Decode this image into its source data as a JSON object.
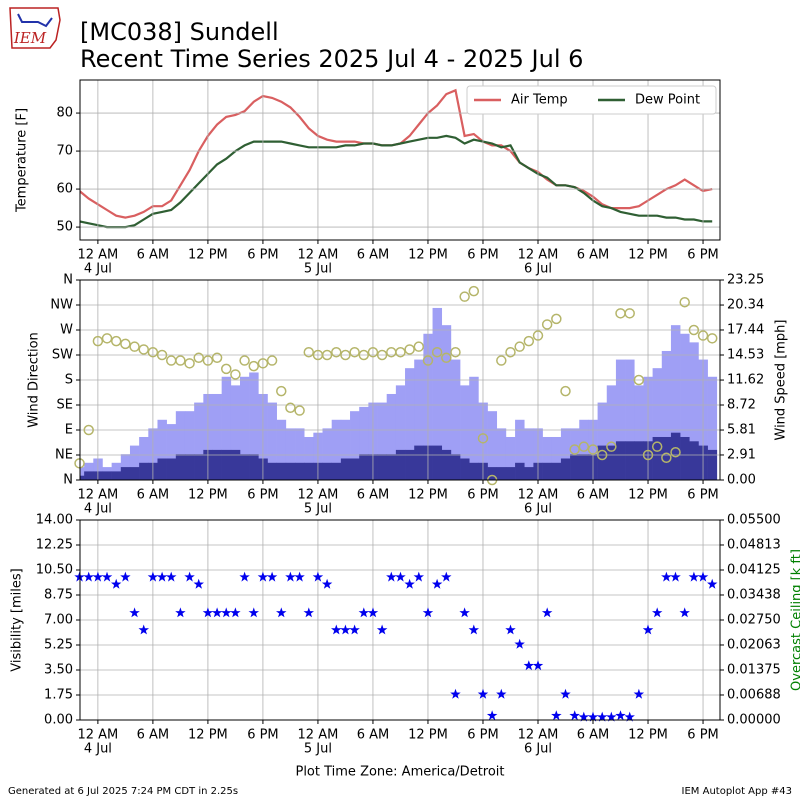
{
  "header": {
    "logo": "IEM",
    "title_line1": "[MC038] Sundell",
    "title_line2": "Recent Time Series 2025 Jul 4 - 2025 Jul 6"
  },
  "footer": {
    "timezone": "Plot Time Zone: America/Detroit",
    "generated": "Generated at 6 Jul 2025 7:24 PM CDT in 2.25s",
    "app": "IEM Autoplot App #43"
  },
  "chart_data": [
    {
      "type": "line",
      "ylabel": "Temperature [F]",
      "grid": true,
      "legend": "upper right",
      "xlim": [
        -1.95,
        67.85
      ],
      "xticks": [
        {
          "value": 0,
          "label": "12 AM"
        },
        {
          "value": 6,
          "label": "6 AM"
        },
        {
          "value": 12,
          "label": "12 PM"
        },
        {
          "value": 18,
          "label": "6 PM"
        },
        {
          "value": 24,
          "label": "12 AM"
        },
        {
          "value": 30,
          "label": "6 AM"
        },
        {
          "value": 36,
          "label": "12 PM"
        },
        {
          "value": 42,
          "label": "6 PM"
        },
        {
          "value": 48,
          "label": "12 AM"
        },
        {
          "value": 54,
          "label": "6 AM"
        },
        {
          "value": 60,
          "label": "12 PM"
        },
        {
          "value": 66,
          "label": "6 PM"
        }
      ],
      "xdates": [
        {
          "value": 0,
          "label": "4 Jul"
        },
        {
          "value": 24,
          "label": "5 Jul"
        },
        {
          "value": 48,
          "label": "6 Jul"
        }
      ],
      "ylim": [
        46.6,
        88.7
      ],
      "yticks": [
        50,
        60,
        70,
        80
      ],
      "x": [
        -2,
        -1,
        0,
        1,
        2,
        3,
        4,
        5,
        6,
        7,
        8,
        9,
        10,
        11,
        12,
        13,
        14,
        15,
        16,
        17,
        18,
        19,
        20,
        21,
        22,
        23,
        24,
        25,
        26,
        27,
        28,
        29,
        30,
        31,
        32,
        33,
        34,
        35,
        36,
        37,
        38,
        39,
        40,
        41,
        42,
        43,
        44,
        45,
        46,
        47,
        48,
        49,
        50,
        51,
        52,
        53,
        54,
        55,
        56,
        57,
        58,
        59,
        60,
        61,
        62,
        63,
        64,
        65,
        66,
        67
      ],
      "series": [
        {
          "name": "Air Temp",
          "color": "#d95f60",
          "values": [
            59.5,
            57.5,
            56,
            54.5,
            53,
            52.5,
            53,
            54,
            55.5,
            55.5,
            57,
            61,
            65,
            70,
            74,
            77,
            79,
            79.5,
            80.5,
            83,
            84.5,
            84,
            83,
            81.5,
            79,
            76,
            74,
            73,
            72.5,
            72.5,
            72.5,
            72,
            72,
            71.5,
            71.5,
            72,
            74,
            77,
            80,
            82,
            85,
            86,
            74,
            74.5,
            72.5,
            71.5,
            71.5,
            70,
            67,
            65.5,
            64.5,
            62.5,
            61,
            61,
            60.5,
            59.5,
            58,
            56,
            55,
            55,
            55,
            55.5,
            57,
            58.5,
            60,
            61,
            62.5,
            61,
            59.5,
            60
          ]
        },
        {
          "name": "Dew Point",
          "color": "#2f5f33",
          "values": [
            51.5,
            51,
            50.5,
            50,
            50,
            50,
            50.5,
            52,
            53.5,
            54,
            54.5,
            56.5,
            59,
            61.5,
            64,
            66.5,
            68,
            70,
            71.5,
            72.5,
            72.5,
            72.5,
            72.5,
            72,
            71.5,
            71,
            71,
            71,
            71,
            71.5,
            71.5,
            72,
            72,
            71.5,
            71.5,
            72,
            72.5,
            73,
            73.5,
            73.5,
            74,
            73.5,
            72,
            73,
            72.5,
            72,
            71,
            71.5,
            67,
            65.5,
            64,
            63,
            61,
            61,
            60.5,
            59,
            57,
            55.5,
            55,
            54,
            53.5,
            53,
            53,
            53,
            52.5,
            52.5,
            52,
            52,
            51.5,
            51.5
          ]
        }
      ]
    },
    {
      "type": "bar",
      "ylabel": "Wind Direction",
      "y2label": "Wind Speed [mph]",
      "grid": true,
      "xlim": [
        -1.95,
        67.85
      ],
      "xticks": [
        {
          "value": 0,
          "label": "12 AM"
        },
        {
          "value": 6,
          "label": "6 AM"
        },
        {
          "value": 12,
          "label": "12 PM"
        },
        {
          "value": 18,
          "label": "6 PM"
        },
        {
          "value": 24,
          "label": "12 AM"
        },
        {
          "value": 30,
          "label": "6 AM"
        },
        {
          "value": 36,
          "label": "12 PM"
        },
        {
          "value": 42,
          "label": "6 PM"
        },
        {
          "value": 48,
          "label": "12 AM"
        },
        {
          "value": 54,
          "label": "6 AM"
        },
        {
          "value": 60,
          "label": "12 PM"
        },
        {
          "value": 66,
          "label": "6 PM"
        }
      ],
      "xdates": [
        {
          "value": 0,
          "label": "4 Jul"
        },
        {
          "value": 24,
          "label": "5 Jul"
        },
        {
          "value": 48,
          "label": "6 Jul"
        }
      ],
      "ylim": [
        0,
        360
      ],
      "yticks": [
        {
          "value": 0,
          "label": "N"
        },
        {
          "value": 45,
          "label": "NE"
        },
        {
          "value": 90,
          "label": "E"
        },
        {
          "value": 135,
          "label": "SE"
        },
        {
          "value": 180,
          "label": "S"
        },
        {
          "value": 225,
          "label": "SW"
        },
        {
          "value": 270,
          "label": "W"
        },
        {
          "value": 315,
          "label": "NW"
        },
        {
          "value": 360,
          "label": "N"
        }
      ],
      "y2lim": [
        0,
        23.25
      ],
      "y2ticks": [
        {
          "value": 0,
          "label": "0.00"
        },
        {
          "value": 2.91,
          "label": "2.91"
        },
        {
          "value": 5.81,
          "label": "5.81"
        },
        {
          "value": 8.72,
          "label": "8.72"
        },
        {
          "value": 11.62,
          "label": "11.62"
        },
        {
          "value": 14.53,
          "label": "14.53"
        },
        {
          "value": 17.44,
          "label": "17.44"
        },
        {
          "value": 20.34,
          "label": "20.34"
        },
        {
          "value": 23.25,
          "label": "23.25"
        }
      ],
      "x": [
        -2,
        -1,
        0,
        1,
        2,
        3,
        4,
        5,
        6,
        7,
        8,
        9,
        10,
        11,
        12,
        13,
        14,
        15,
        16,
        17,
        18,
        19,
        20,
        21,
        22,
        23,
        24,
        25,
        26,
        27,
        28,
        29,
        30,
        31,
        32,
        33,
        34,
        35,
        36,
        37,
        38,
        39,
        40,
        41,
        42,
        43,
        44,
        45,
        46,
        47,
        48,
        49,
        50,
        51,
        52,
        53,
        54,
        55,
        56,
        57,
        58,
        59,
        60,
        61,
        62,
        63,
        64,
        65,
        66,
        67
      ],
      "series": [
        {
          "kind": "bar",
          "axis": "y2",
          "color": "#9f9ff5",
          "values": [
            1.5,
            2,
            2.5,
            1.5,
            2,
            3,
            4,
            5,
            6,
            7,
            6.5,
            8,
            8,
            9,
            10,
            10,
            12,
            11,
            12,
            12.5,
            10,
            9,
            7,
            6,
            6,
            5,
            5.5,
            6,
            7,
            7,
            8,
            8.5,
            9,
            9,
            10,
            11,
            13,
            14,
            17,
            20,
            18,
            14,
            11,
            12,
            9,
            8,
            6,
            5,
            7,
            6,
            6,
            5,
            5,
            6,
            6,
            7,
            7,
            9,
            11,
            14,
            14,
            11,
            12,
            13,
            15,
            18,
            17,
            16,
            14,
            12
          ]
        },
        {
          "kind": "bar",
          "axis": "y2",
          "color": "#38389a",
          "values": [
            0.5,
            1,
            1,
            1,
            1,
            1.5,
            1.5,
            2,
            2,
            2.5,
            2.5,
            3,
            3,
            3,
            3.5,
            3.5,
            3.5,
            3.5,
            3,
            3,
            2.5,
            2,
            2,
            2,
            2,
            2,
            2,
            2,
            2,
            2.5,
            2.5,
            3,
            3,
            3,
            3,
            3.5,
            3.5,
            4,
            4,
            4,
            3.5,
            3,
            2.5,
            2,
            2,
            1.5,
            1.5,
            1.5,
            2,
            1.5,
            2,
            2,
            2,
            2.5,
            3,
            3,
            3,
            4,
            4,
            4.5,
            4.5,
            4.5,
            4.5,
            5,
            5,
            5.5,
            5,
            4.5,
            4,
            3.5
          ]
        },
        {
          "kind": "scatter",
          "axis": "y",
          "color": "#b5b56a",
          "values": [
            30,
            90,
            250,
            255,
            250,
            245,
            240,
            235,
            230,
            225,
            215,
            215,
            210,
            220,
            215,
            220,
            200,
            190,
            215,
            205,
            210,
            215,
            160,
            130,
            125,
            230,
            225,
            225,
            230,
            225,
            230,
            225,
            230,
            225,
            230,
            230,
            235,
            240,
            215,
            230,
            220,
            230,
            330,
            340,
            75,
            0,
            215,
            230,
            240,
            250,
            260,
            280,
            290,
            160,
            55,
            60,
            55,
            45,
            60,
            300,
            300,
            180,
            45,
            60,
            40,
            50,
            320,
            270,
            260,
            255
          ]
        }
      ]
    },
    {
      "type": "scatter",
      "ylabel": "Visibility [miles]",
      "y2label": "Overcast Ceiling [k ft]",
      "y2color": "#008000",
      "grid": true,
      "marker": "star",
      "xlabel": "Plot Time Zone: America/Detroit",
      "xlim": [
        -1.95,
        67.85
      ],
      "xticks": [
        {
          "value": 0,
          "label": "12 AM"
        },
        {
          "value": 6,
          "label": "6 AM"
        },
        {
          "value": 12,
          "label": "12 PM"
        },
        {
          "value": 18,
          "label": "6 PM"
        },
        {
          "value": 24,
          "label": "12 AM"
        },
        {
          "value": 30,
          "label": "6 AM"
        },
        {
          "value": 36,
          "label": "12 PM"
        },
        {
          "value": 42,
          "label": "6 PM"
        },
        {
          "value": 48,
          "label": "12 AM"
        },
        {
          "value": 54,
          "label": "6 AM"
        },
        {
          "value": 60,
          "label": "12 PM"
        },
        {
          "value": 66,
          "label": "6 PM"
        }
      ],
      "xdates": [
        {
          "value": 0,
          "label": "4 Jul"
        },
        {
          "value": 24,
          "label": "5 Jul"
        },
        {
          "value": 48,
          "label": "6 Jul"
        }
      ],
      "ylim": [
        0,
        14
      ],
      "yticks": [
        {
          "value": 0,
          "label": "0.00"
        },
        {
          "value": 1.75,
          "label": "1.75"
        },
        {
          "value": 3.5,
          "label": "3.50"
        },
        {
          "value": 5.25,
          "label": "5.25"
        },
        {
          "value": 7,
          "label": "7.00"
        },
        {
          "value": 8.75,
          "label": "8.75"
        },
        {
          "value": 10.5,
          "label": "10.50"
        },
        {
          "value": 12.25,
          "label": "12.25"
        },
        {
          "value": 14,
          "label": "14.00"
        }
      ],
      "y2lim": [
        0,
        0.055
      ],
      "y2ticks": [
        {
          "value": 0,
          "label": "0.00000"
        },
        {
          "value": 0.00688,
          "label": "0.00688"
        },
        {
          "value": 0.01375,
          "label": "0.01375"
        },
        {
          "value": 0.02063,
          "label": "0.02063"
        },
        {
          "value": 0.0275,
          "label": "0.02750"
        },
        {
          "value": 0.03438,
          "label": "0.03438"
        },
        {
          "value": 0.04125,
          "label": "0.04125"
        },
        {
          "value": 0.04813,
          "label": "0.04813"
        },
        {
          "value": 0.055,
          "label": "0.05500"
        }
      ],
      "x": [
        -2,
        -1,
        0,
        1,
        2,
        3,
        4,
        5,
        6,
        7,
        8,
        9,
        10,
        11,
        12,
        13,
        14,
        15,
        16,
        17,
        18,
        19,
        20,
        21,
        22,
        23,
        24,
        25,
        26,
        27,
        28,
        29,
        30,
        31,
        32,
        33,
        34,
        35,
        36,
        37,
        38,
        39,
        40,
        41,
        42,
        43,
        44,
        45,
        46,
        47,
        48,
        49,
        50,
        51,
        52,
        53,
        54,
        55,
        56,
        57,
        58,
        59,
        60,
        61,
        62,
        63,
        64,
        65,
        66,
        67
      ],
      "series": [
        {
          "color": "#0000ee",
          "values": [
            10,
            10,
            10,
            10,
            9.5,
            10,
            7.5,
            6.3,
            10,
            10,
            10,
            7.5,
            10,
            9.5,
            7.5,
            7.5,
            7.5,
            7.5,
            10,
            7.5,
            10,
            10,
            7.5,
            10,
            10,
            7.5,
            10,
            9.5,
            6.3,
            6.3,
            6.3,
            7.5,
            7.5,
            6.3,
            10,
            10,
            9.5,
            10,
            7.5,
            9.5,
            10,
            1.8,
            7.5,
            6.3,
            1.8,
            0.3,
            1.8,
            6.3,
            5.3,
            3.8,
            3.8,
            7.5,
            0.3,
            1.8,
            0.3,
            0.2,
            0.2,
            0.2,
            0.2,
            0.3,
            0.2,
            1.8,
            6.3,
            7.5,
            10,
            10,
            7.5,
            10,
            10,
            9.5
          ]
        }
      ]
    }
  ]
}
